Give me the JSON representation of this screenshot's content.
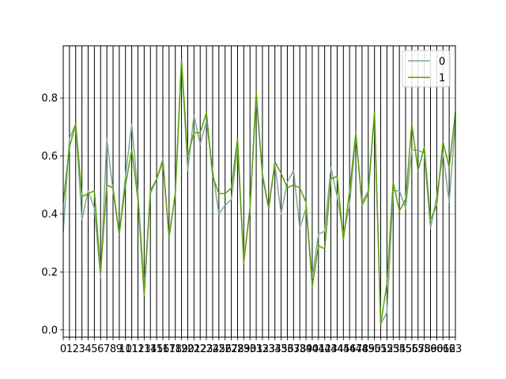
{
  "chart_data": {
    "type": "line",
    "x": [
      0,
      1,
      2,
      3,
      4,
      5,
      6,
      7,
      8,
      9,
      10,
      11,
      12,
      13,
      14,
      15,
      16,
      17,
      18,
      19,
      20,
      21,
      22,
      23,
      24,
      25,
      26,
      27,
      28,
      29,
      30,
      31,
      32,
      33,
      34,
      35,
      36,
      37,
      38,
      39,
      40,
      41,
      42,
      43,
      44,
      45,
      46,
      47,
      48,
      49,
      50,
      51,
      52,
      53,
      54,
      55,
      56,
      57,
      58,
      59,
      60,
      61,
      62,
      63
    ],
    "series": [
      {
        "name": "0",
        "color": "#7fa88f",
        "values": [
          0.34,
          0.66,
          0.71,
          0.38,
          0.48,
          0.42,
          0.18,
          0.66,
          0.48,
          0.33,
          0.53,
          0.71,
          0.47,
          0.15,
          0.47,
          0.52,
          0.59,
          0.32,
          0.47,
          0.93,
          0.55,
          0.74,
          0.64,
          0.72,
          0.55,
          0.4,
          0.43,
          0.45,
          0.63,
          0.24,
          0.42,
          0.8,
          0.54,
          0.42,
          0.57,
          0.4,
          0.51,
          0.55,
          0.35,
          0.42,
          0.18,
          0.33,
          0.34,
          0.56,
          0.46,
          0.33,
          0.43,
          0.67,
          0.44,
          0.48,
          0.75,
          0.02,
          0.06,
          0.48,
          0.48,
          0.42,
          0.62,
          0.62,
          0.61,
          0.35,
          0.46,
          0.61,
          0.44,
          0.72
        ]
      },
      {
        "name": "1",
        "color": "#5a9e0a",
        "values": [
          0.44,
          0.63,
          0.71,
          0.46,
          0.47,
          0.48,
          0.2,
          0.5,
          0.49,
          0.33,
          0.5,
          0.62,
          0.45,
          0.12,
          0.48,
          0.52,
          0.58,
          0.32,
          0.47,
          0.93,
          0.6,
          0.68,
          0.68,
          0.75,
          0.53,
          0.47,
          0.47,
          0.49,
          0.66,
          0.23,
          0.42,
          0.82,
          0.53,
          0.42,
          0.58,
          0.54,
          0.49,
          0.5,
          0.49,
          0.44,
          0.15,
          0.29,
          0.28,
          0.52,
          0.53,
          0.31,
          0.48,
          0.68,
          0.43,
          0.47,
          0.75,
          0.02,
          0.16,
          0.51,
          0.41,
          0.45,
          0.71,
          0.55,
          0.63,
          0.38,
          0.43,
          0.65,
          0.56,
          0.75
        ]
      }
    ],
    "xlim": [
      0,
      63
    ],
    "ylim": [
      -0.025,
      0.98
    ],
    "yticks": [
      0.0,
      0.2,
      0.4,
      0.6,
      0.8
    ],
    "ytick_labels": [
      "0.0",
      "0.2",
      "0.4",
      "0.6",
      "0.8"
    ],
    "xtick_labels": [
      "0",
      "1",
      "2",
      "3",
      "4",
      "5",
      "6",
      "7",
      "8",
      "9",
      "10",
      "11",
      "12",
      "13",
      "14",
      "15",
      "16",
      "17",
      "18",
      "19",
      "20",
      "21",
      "22",
      "23",
      "24",
      "25",
      "26",
      "27",
      "28",
      "29",
      "30",
      "31",
      "32",
      "33",
      "34",
      "35",
      "36",
      "37",
      "38",
      "39",
      "40",
      "41",
      "42",
      "43",
      "44",
      "45",
      "46",
      "47",
      "48",
      "49",
      "50",
      "51",
      "52",
      "53",
      "54",
      "55",
      "56",
      "57",
      "58",
      "59",
      "60",
      "61",
      "62",
      "63"
    ],
    "title": "",
    "xlabel": "",
    "ylabel": "",
    "grid": "both",
    "legend_position": "top-right"
  }
}
